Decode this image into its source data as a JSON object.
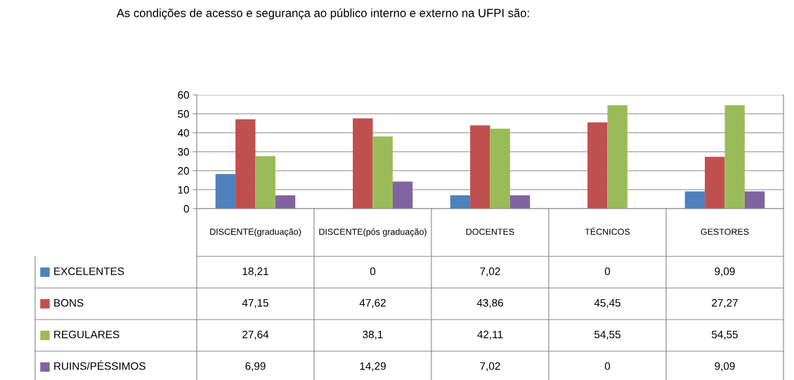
{
  "chart_data": {
    "type": "bar",
    "title": "As condições de acesso e segurança ao público interno e externo na UFPI são:",
    "categories": [
      "DISCENTE(graduação)",
      "DISCENTE(pós graduação)",
      "DOCENTES",
      "TÉCNICOS",
      "GESTORES"
    ],
    "series": [
      {
        "name": "EXCELENTES",
        "color": "#4f81bd",
        "values": [
          18.21,
          0,
          7.02,
          0,
          9.09
        ],
        "value_labels": [
          "18,21",
          "0",
          "7,02",
          "0",
          "9,09"
        ]
      },
      {
        "name": "BONS",
        "color": "#c0504d",
        "values": [
          47.15,
          47.62,
          43.86,
          45.45,
          27.27
        ],
        "value_labels": [
          "47,15",
          "47,62",
          "43,86",
          "45,45",
          "27,27"
        ]
      },
      {
        "name": "REGULARES",
        "color": "#9bbb59",
        "values": [
          27.64,
          38.1,
          42.11,
          54.55,
          54.55
        ],
        "value_labels": [
          "27,64",
          "38,1",
          "42,11",
          "54,55",
          "54,55"
        ]
      },
      {
        "name": "RUINS/PÉSSIMOS",
        "color": "#8064a2",
        "values": [
          6.99,
          14.29,
          7.02,
          0,
          9.09
        ],
        "value_labels": [
          "6,99",
          "14,29",
          "7,02",
          "0",
          "9,09"
        ]
      }
    ],
    "ylim": [
      0,
      60
    ],
    "yticks": [
      0,
      10,
      20,
      30,
      40,
      50,
      60
    ],
    "grid": "y",
    "legend": "bottom"
  }
}
